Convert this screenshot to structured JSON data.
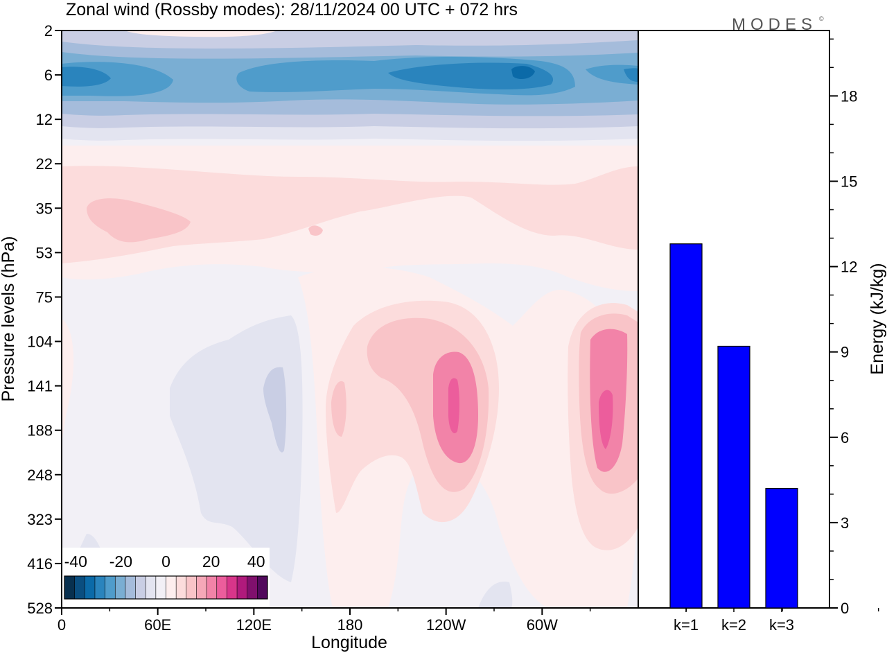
{
  "title": "Zonal wind (Rossby modes):  28/11/2024  00 UTC  + 072 hrs",
  "logo_text": "MODES",
  "colors": {
    "bar": "#0000ff",
    "negative": [
      "#08304f",
      "#0a4e80",
      "#0b6aa8",
      "#2a84bd",
      "#4f9ccb",
      "#7aaed3",
      "#a5bcdb",
      "#c9cee4",
      "#e3e4f0",
      "#f2f0f6"
    ],
    "positive": [
      "#fdeeee",
      "#fcdcdc",
      "#f9c4c8",
      "#f6a8b8",
      "#f283a8",
      "#ec5d9c",
      "#d8358a",
      "#b01a7c",
      "#80106d",
      "#520a5c"
    ]
  },
  "chart_data": [
    {
      "type": "heatmap",
      "title": "Zonal wind (Rossby modes):  28/11/2024  00 UTC  + 072 hrs",
      "xlabel": "Longitude",
      "ylabel": "Pressure levels (hPa)",
      "x_ticks": [
        "0",
        "60E",
        "120E",
        "180",
        "120W",
        "60W"
      ],
      "y_ticks": [
        "2",
        "6",
        "12",
        "22",
        "35",
        "53",
        "75",
        "104",
        "141",
        "188",
        "248",
        "323",
        "416",
        "528"
      ],
      "colorbar": {
        "ticks": [
          "-40",
          "-20",
          "0",
          "20",
          "40"
        ],
        "range": [
          -45,
          45
        ],
        "step": 5
      },
      "features": [
        {
          "region": "band near 6 hPa",
          "sign": "negative",
          "min_value": -35
        },
        {
          "region": "35-53 hPa, 20E-60E",
          "sign": "positive",
          "max_value": 10
        },
        {
          "region": "141 hPa, 130W",
          "sign": "positive",
          "max_value": 25
        },
        {
          "region": "150-188 hPa, 20W",
          "sign": "positive",
          "max_value": 25
        },
        {
          "region": "104-248 hPa, 80E-140E",
          "sign": "negative",
          "min_value": -10
        }
      ]
    },
    {
      "type": "bar",
      "categories": [
        "k=1",
        "k=2",
        "k=3"
      ],
      "values": [
        12.8,
        9.2,
        4.2
      ],
      "ylabel": "Energy (kJ/kg)",
      "y_ticks": [
        "0",
        "3",
        "6",
        "9",
        "12",
        "15",
        "18"
      ],
      "ylim": [
        0,
        20.3
      ]
    }
  ]
}
